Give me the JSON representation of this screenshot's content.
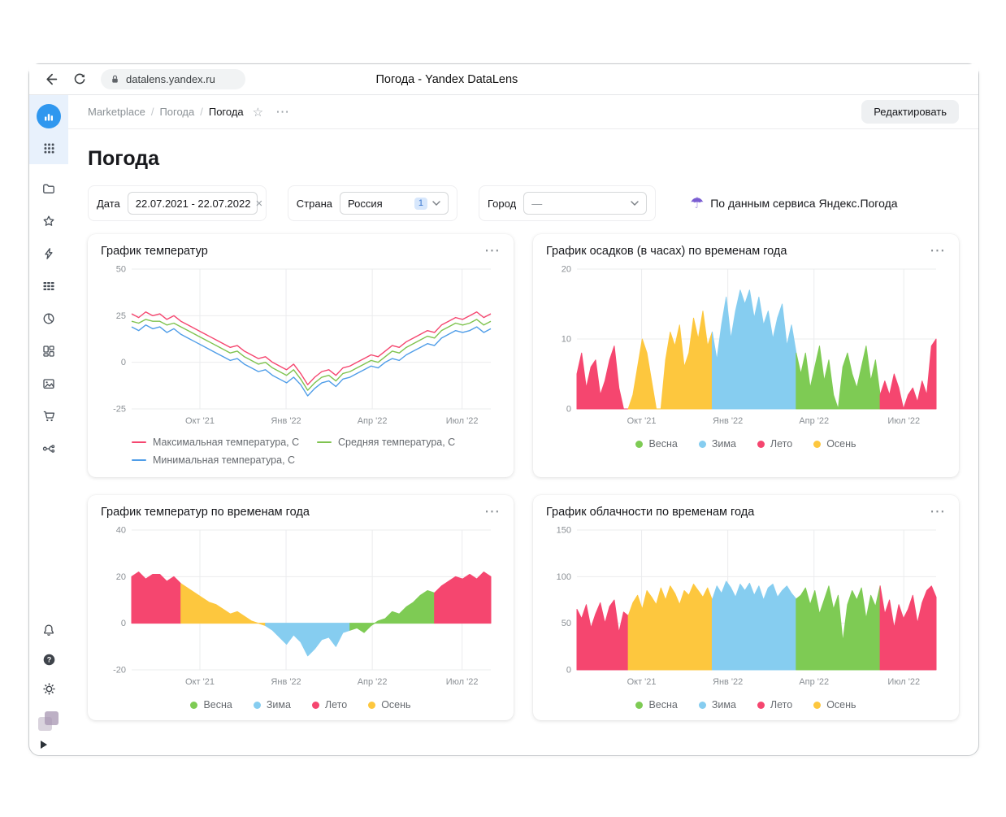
{
  "browser": {
    "url": "datalens.yandex.ru",
    "tab_title": "Погода - Yandex DataLens"
  },
  "sidebar": {
    "icons": [
      "datalens-logo",
      "apps-grid",
      "folder",
      "star",
      "lightning",
      "datasets",
      "charts-pie",
      "dashboards",
      "gallery",
      "marketplace-cart",
      "services-flow",
      "notifications-bell",
      "help",
      "settings-gear",
      "user-avatar",
      "expand-panel"
    ]
  },
  "header": {
    "breadcrumb": {
      "items": [
        "Marketplace",
        "Погода",
        "Погода"
      ],
      "separator": "/",
      "star_icon": "☆",
      "more_icon": "⋯"
    },
    "edit_button": "Редактировать"
  },
  "page": {
    "title": "Погода"
  },
  "filters": {
    "date": {
      "label": "Дата",
      "value": "22.07.2021 - 22.07.2022",
      "clear_icon": "×"
    },
    "country": {
      "label": "Страна",
      "value": "Россия",
      "badge": "1"
    },
    "city": {
      "label": "Город",
      "value": "—"
    },
    "umbrella_icon": "☂",
    "source_note": "По данным сервиса Яндекс.Погода"
  },
  "card_menu_icon": "⋯",
  "colors": {
    "accent_blue": "#2f97ef",
    "seasons": {
      "Весна": "#7ecb54",
      "Зима": "#86cdf0",
      "Лето": "#f5466f",
      "Осень": "#fdc73e"
    }
  },
  "season_legend": [
    {
      "label": "Весна",
      "color": "#7ecb54"
    },
    {
      "label": "Зима",
      "color": "#86cdf0"
    },
    {
      "label": "Лето",
      "color": "#f5466f"
    },
    {
      "label": "Осень",
      "color": "#fdc73e"
    }
  ],
  "charts": [
    {
      "title": "График температур",
      "chart_data": {
        "type": "line",
        "ylim": [
          -25,
          50
        ],
        "yticks": [
          -25,
          0,
          25,
          50
        ],
        "xticks": [
          {
            "pos": 0.19,
            "label": "Окт '21"
          },
          {
            "pos": 0.43,
            "label": "Янв '22"
          },
          {
            "pos": 0.67,
            "label": "Апр '22"
          },
          {
            "pos": 0.92,
            "label": "Июл '22"
          }
        ],
        "series": [
          {
            "name": "Максимальная температура, C",
            "color": "#f5466f",
            "values": [
              26,
              24,
              27,
              25,
              26,
              23,
              25,
              22,
              20,
              18,
              16,
              14,
              12,
              10,
              8,
              9,
              6,
              4,
              2,
              3,
              0,
              -2,
              -4,
              -1,
              -6,
              -12,
              -8,
              -5,
              -4,
              -7,
              -3,
              -2,
              0,
              2,
              4,
              3,
              6,
              9,
              8,
              11,
              13,
              15,
              17,
              16,
              20,
              22,
              24,
              23,
              25,
              27,
              24,
              26
            ]
          },
          {
            "name": "Средняя температура, C",
            "color": "#7fc34f",
            "values": [
              22,
              21,
              23,
              22,
              22,
              20,
              21,
              19,
              17,
              15,
              13,
              11,
              9,
              7,
              5,
              6,
              3,
              1,
              -1,
              0,
              -3,
              -5,
              -7,
              -4,
              -9,
              -15,
              -11,
              -8,
              -7,
              -10,
              -6,
              -5,
              -3,
              -1,
              1,
              0,
              3,
              6,
              5,
              8,
              10,
              12,
              14,
              13,
              17,
              19,
              21,
              20,
              21,
              23,
              20,
              22
            ]
          },
          {
            "name": "Минимальная температура, C",
            "color": "#4f9de8",
            "values": [
              19,
              17,
              20,
              18,
              19,
              16,
              18,
              15,
              13,
              11,
              9,
              7,
              5,
              3,
              1,
              2,
              -1,
              -3,
              -5,
              -4,
              -7,
              -9,
              -11,
              -8,
              -12,
              -18,
              -14,
              -11,
              -10,
              -13,
              -9,
              -8,
              -6,
              -4,
              -2,
              -3,
              0,
              2,
              1,
              4,
              6,
              8,
              10,
              9,
              13,
              15,
              17,
              16,
              17,
              19,
              16,
              18
            ]
          }
        ]
      }
    },
    {
      "title": "График осадков (в часах) по временам года",
      "chart_data": {
        "type": "area",
        "ylim": [
          0,
          20
        ],
        "yticks": [
          0,
          10,
          20
        ],
        "xticks": [
          {
            "pos": 0.18,
            "label": "Окт '21"
          },
          {
            "pos": 0.42,
            "label": "Янв '22"
          },
          {
            "pos": 0.66,
            "label": "Апр '22"
          },
          {
            "pos": 0.91,
            "label": "Июл '22"
          }
        ],
        "values": [
          5,
          8,
          3,
          6,
          7,
          2,
          4,
          7,
          9,
          3,
          0,
          0,
          2,
          6,
          10,
          8,
          4,
          0,
          0,
          7,
          11,
          9,
          12,
          6,
          8,
          13,
          10,
          14,
          9,
          11,
          7,
          12,
          16,
          10,
          14,
          17,
          15,
          17,
          13,
          16,
          12,
          14,
          10,
          13,
          15,
          9,
          12,
          8,
          5,
          8,
          3,
          6,
          9,
          4,
          7,
          2,
          0,
          6,
          8,
          5,
          3,
          6,
          9,
          4,
          7,
          2,
          4,
          2,
          5,
          3,
          0,
          2,
          3,
          1,
          4,
          2,
          9,
          10
        ],
        "season_runs": [
          {
            "season": "Лето",
            "start": 0,
            "end": 11
          },
          {
            "season": "Осень",
            "start": 12,
            "end": 29
          },
          {
            "season": "Зима",
            "start": 30,
            "end": 47
          },
          {
            "season": "Весна",
            "start": 48,
            "end": 65
          },
          {
            "season": "Лето",
            "start": 66,
            "end": 77
          }
        ],
        "legend": [
          "Весна",
          "Зима",
          "Лето",
          "Осень"
        ]
      }
    },
    {
      "title": "График температур по временам года",
      "chart_data": {
        "type": "area",
        "ylim": [
          -20,
          40
        ],
        "yticks": [
          -20,
          0,
          20,
          40
        ],
        "xticks": [
          {
            "pos": 0.19,
            "label": "Окт '21"
          },
          {
            "pos": 0.43,
            "label": "Янв '22"
          },
          {
            "pos": 0.67,
            "label": "Апр '22"
          },
          {
            "pos": 0.92,
            "label": "Июл '22"
          }
        ],
        "values": [
          20,
          22,
          19,
          21,
          21,
          18,
          20,
          17,
          15,
          13,
          11,
          9,
          8,
          6,
          4,
          5,
          3,
          1,
          0,
          -1,
          -3,
          -6,
          -9,
          -5,
          -8,
          -14,
          -11,
          -7,
          -6,
          -10,
          -4,
          -3,
          -2,
          -4,
          -1,
          1,
          2,
          5,
          4,
          7,
          9,
          12,
          14,
          13,
          16,
          18,
          20,
          19,
          21,
          19,
          22,
          20
        ],
        "season_runs": [
          {
            "season": "Лето",
            "start": 0,
            "end": 7
          },
          {
            "season": "Осень",
            "start": 8,
            "end": 19
          },
          {
            "season": "Зима",
            "start": 20,
            "end": 31
          },
          {
            "season": "Весна",
            "start": 32,
            "end": 43
          },
          {
            "season": "Лето",
            "start": 44,
            "end": 51
          }
        ],
        "legend": [
          "Весна",
          "Зима",
          "Лето",
          "Осень"
        ]
      }
    },
    {
      "title": "График облачности по временам года",
      "chart_data": {
        "type": "area",
        "ylim": [
          0,
          150
        ],
        "yticks": [
          0,
          50,
          100,
          150
        ],
        "xticks": [
          {
            "pos": 0.18,
            "label": "Окт '21"
          },
          {
            "pos": 0.42,
            "label": "Янв '22"
          },
          {
            "pos": 0.66,
            "label": "Апр '22"
          },
          {
            "pos": 0.91,
            "label": "Июл '22"
          }
        ],
        "values": [
          65,
          55,
          70,
          45,
          60,
          72,
          50,
          68,
          75,
          40,
          62,
          58,
          72,
          80,
          65,
          85,
          78,
          70,
          88,
          75,
          90,
          82,
          70,
          85,
          80,
          92,
          85,
          78,
          88,
          75,
          90,
          82,
          95,
          88,
          78,
          92,
          85,
          93,
          80,
          90,
          75,
          88,
          92,
          78,
          85,
          90,
          82,
          76,
          80,
          88,
          70,
          85,
          60,
          75,
          90,
          65,
          80,
          30,
          70,
          85,
          75,
          88,
          55,
          80,
          68,
          90,
          60,
          75,
          45,
          70,
          55,
          65,
          80,
          50,
          72,
          85,
          90,
          78
        ],
        "season_runs": [
          {
            "season": "Лето",
            "start": 0,
            "end": 11
          },
          {
            "season": "Осень",
            "start": 12,
            "end": 29
          },
          {
            "season": "Зима",
            "start": 30,
            "end": 47
          },
          {
            "season": "Весна",
            "start": 48,
            "end": 65
          },
          {
            "season": "Лето",
            "start": 66,
            "end": 77
          }
        ],
        "legend": [
          "Весна",
          "Зима",
          "Лето",
          "Осень"
        ]
      }
    }
  ]
}
